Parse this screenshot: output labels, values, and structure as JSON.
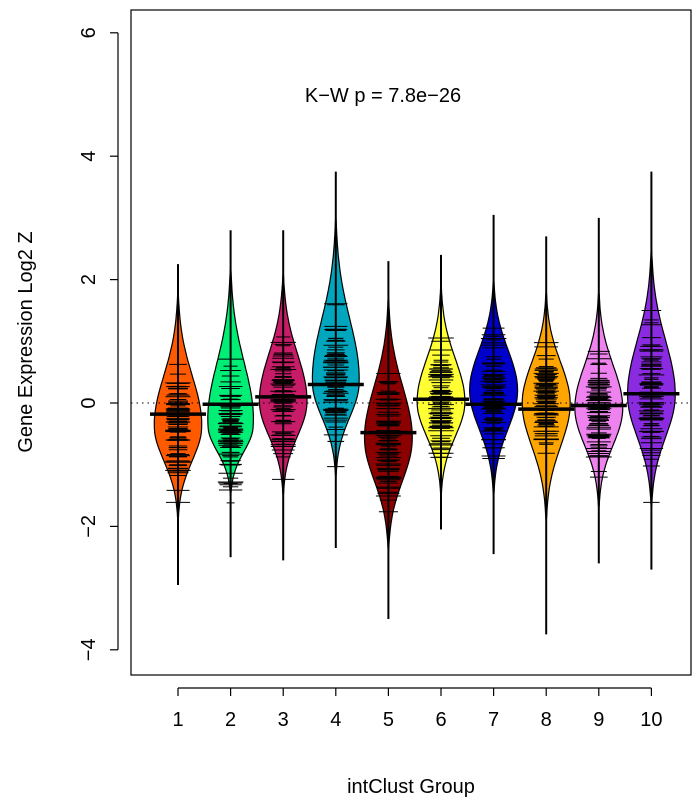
{
  "chart_data": {
    "type": "beanplot",
    "title": "",
    "xlabel": "intClust Group",
    "ylabel": "Gene Expression Log2 Z",
    "annotation": "K−W   p = 7.8e−26",
    "ylim": [
      -4.5,
      6.0
    ],
    "yticks": [
      -4,
      -2,
      0,
      2,
      4,
      6
    ],
    "ytick_labels": [
      "−4",
      "−2",
      "0",
      "2",
      "4",
      "6"
    ],
    "reference_line": 0,
    "categories": [
      "1",
      "2",
      "3",
      "4",
      "5",
      "6",
      "7",
      "8",
      "9",
      "10"
    ],
    "groups": [
      {
        "label": "1",
        "color": "#ff5a00",
        "median": -0.18,
        "bean_min": -1.9,
        "bean_max": 1.8,
        "line_min": -2.95,
        "line_max": 2.25,
        "peak": -0.4
      },
      {
        "label": "2",
        "color": "#00ee76",
        "median": -0.02,
        "bean_min": -1.5,
        "bean_max": 2.2,
        "line_min": -2.5,
        "line_max": 2.8,
        "peak": -0.4
      },
      {
        "label": "3",
        "color": "#c71c68",
        "median": 0.1,
        "bean_min": -1.5,
        "bean_max": 2.1,
        "line_min": -2.55,
        "line_max": 2.8,
        "peak": 0.0
      },
      {
        "label": "4",
        "color": "#00a6bd",
        "median": 0.3,
        "bean_min": -1.2,
        "bean_max": 3.0,
        "line_min": -2.35,
        "line_max": 3.75,
        "peak": 0.3
      },
      {
        "label": "5",
        "color": "#8b0000",
        "median": -0.48,
        "bean_min": -2.4,
        "bean_max": 1.7,
        "line_min": -3.5,
        "line_max": 2.3,
        "peak": -0.6
      },
      {
        "label": "6",
        "color": "#ffff33",
        "median": 0.06,
        "bean_min": -1.5,
        "bean_max": 1.9,
        "line_min": -2.05,
        "line_max": 2.4,
        "peak": 0.0
      },
      {
        "label": "7",
        "color": "#0000cd",
        "median": -0.02,
        "bean_min": -1.5,
        "bean_max": 2.0,
        "line_min": -2.45,
        "line_max": 3.05,
        "peak": 0.2
      },
      {
        "label": "8",
        "color": "#ffa500",
        "median": -0.1,
        "bean_min": -1.9,
        "bean_max": 1.8,
        "line_min": -3.75,
        "line_max": 2.7,
        "peak": 0.0
      },
      {
        "label": "9",
        "color": "#ee82ee",
        "median": -0.04,
        "bean_min": -1.7,
        "bean_max": 1.8,
        "line_min": -2.6,
        "line_max": 3.0,
        "peak": -0.1
      },
      {
        "label": "10",
        "color": "#8a2be2",
        "median": 0.15,
        "bean_min": -1.7,
        "bean_max": 2.5,
        "line_min": -2.7,
        "line_max": 3.75,
        "peak": 0.1
      }
    ]
  }
}
